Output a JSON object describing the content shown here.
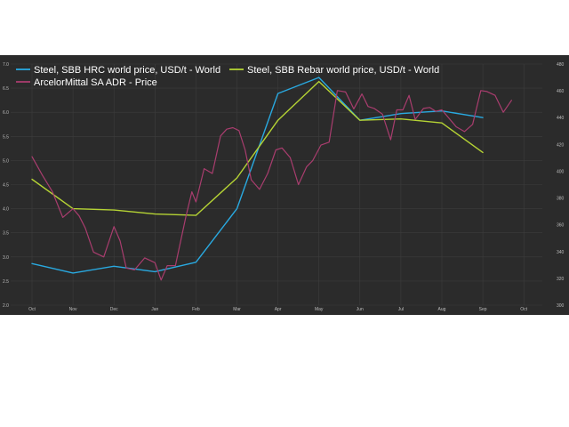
{
  "chart_data": {
    "type": "line",
    "background": "#2b2b2b",
    "grid": true,
    "legend_position": "top-left",
    "x_categories": [
      "Oct",
      "Nov",
      "Dec",
      "Jan",
      "Feb",
      "Mar",
      "Apr",
      "May",
      "Jun",
      "Jul",
      "Aug",
      "Sep",
      "Oct"
    ],
    "y_left": {
      "ticks": [
        "2.0",
        "2.5",
        "3.0",
        "3.5",
        "4.0",
        "4.5",
        "5.0",
        "5.5",
        "6.0",
        "6.5",
        "7.0"
      ],
      "range": [
        2.0,
        7.0
      ]
    },
    "y_right": {
      "ticks": [
        "300",
        "320",
        "340",
        "360",
        "380",
        "400",
        "420",
        "440",
        "460",
        "480"
      ],
      "range": [
        300,
        480
      ]
    },
    "series": [
      {
        "name": "Steel, SBB HRC world price, USD/t - World",
        "color": "#29a9e0",
        "axis": "right",
        "x": [
          0,
          1,
          2,
          3,
          4,
          5,
          6,
          7,
          8,
          9,
          10,
          11
        ],
        "y": [
          331,
          324,
          329,
          325,
          332,
          372,
          458,
          470,
          438,
          443,
          445,
          440
        ]
      },
      {
        "name": "Steel, SBB Rebar world price, USD/t - World",
        "color": "#b5d334",
        "axis": "right",
        "x": [
          0,
          1,
          2,
          3,
          4,
          5,
          6,
          7,
          8,
          9,
          10,
          11
        ],
        "y": [
          394,
          372,
          371,
          368,
          367,
          395,
          438,
          467,
          438,
          439,
          436,
          414
        ]
      },
      {
        "name": "ArcelorMittal SA ADR - Price",
        "color": "#a93d6e",
        "axis": "left",
        "x": [
          0,
          0.25,
          0.5,
          0.75,
          1.0,
          1.15,
          1.3,
          1.5,
          1.75,
          2.0,
          2.15,
          2.3,
          2.5,
          2.75,
          3.0,
          3.15,
          3.3,
          3.5,
          3.75,
          3.9,
          4.0,
          4.2,
          4.4,
          4.6,
          4.75,
          4.9,
          5.05,
          5.2,
          5.35,
          5.55,
          5.75,
          5.95,
          6.1,
          6.3,
          6.5,
          6.7,
          6.85,
          7.05,
          7.25,
          7.45,
          7.65,
          7.85,
          8.05,
          8.2,
          8.35,
          8.55,
          8.75,
          8.9,
          9.05,
          9.2,
          9.35,
          9.55,
          9.7,
          9.85,
          10.0,
          10.15,
          10.35,
          10.55,
          10.75,
          10.95,
          11.1,
          11.3,
          11.5,
          11.7
        ],
        "y": [
          5.08,
          4.7,
          4.35,
          3.82,
          4.0,
          3.85,
          3.6,
          3.1,
          3.0,
          3.63,
          3.33,
          2.77,
          2.73,
          2.98,
          2.88,
          2.52,
          2.82,
          2.82,
          3.82,
          4.35,
          4.14,
          4.83,
          4.73,
          5.51,
          5.65,
          5.68,
          5.62,
          5.22,
          4.6,
          4.4,
          4.73,
          5.22,
          5.26,
          5.06,
          4.5,
          4.87,
          5.0,
          5.32,
          5.38,
          6.45,
          6.42,
          6.07,
          6.38,
          6.12,
          6.08,
          5.96,
          5.43,
          6.05,
          6.05,
          6.35,
          5.85,
          6.08,
          6.1,
          6.02,
          6.05,
          5.9,
          5.7,
          5.6,
          5.75,
          6.45,
          6.43,
          6.35,
          6.0,
          6.25
        ]
      }
    ]
  }
}
